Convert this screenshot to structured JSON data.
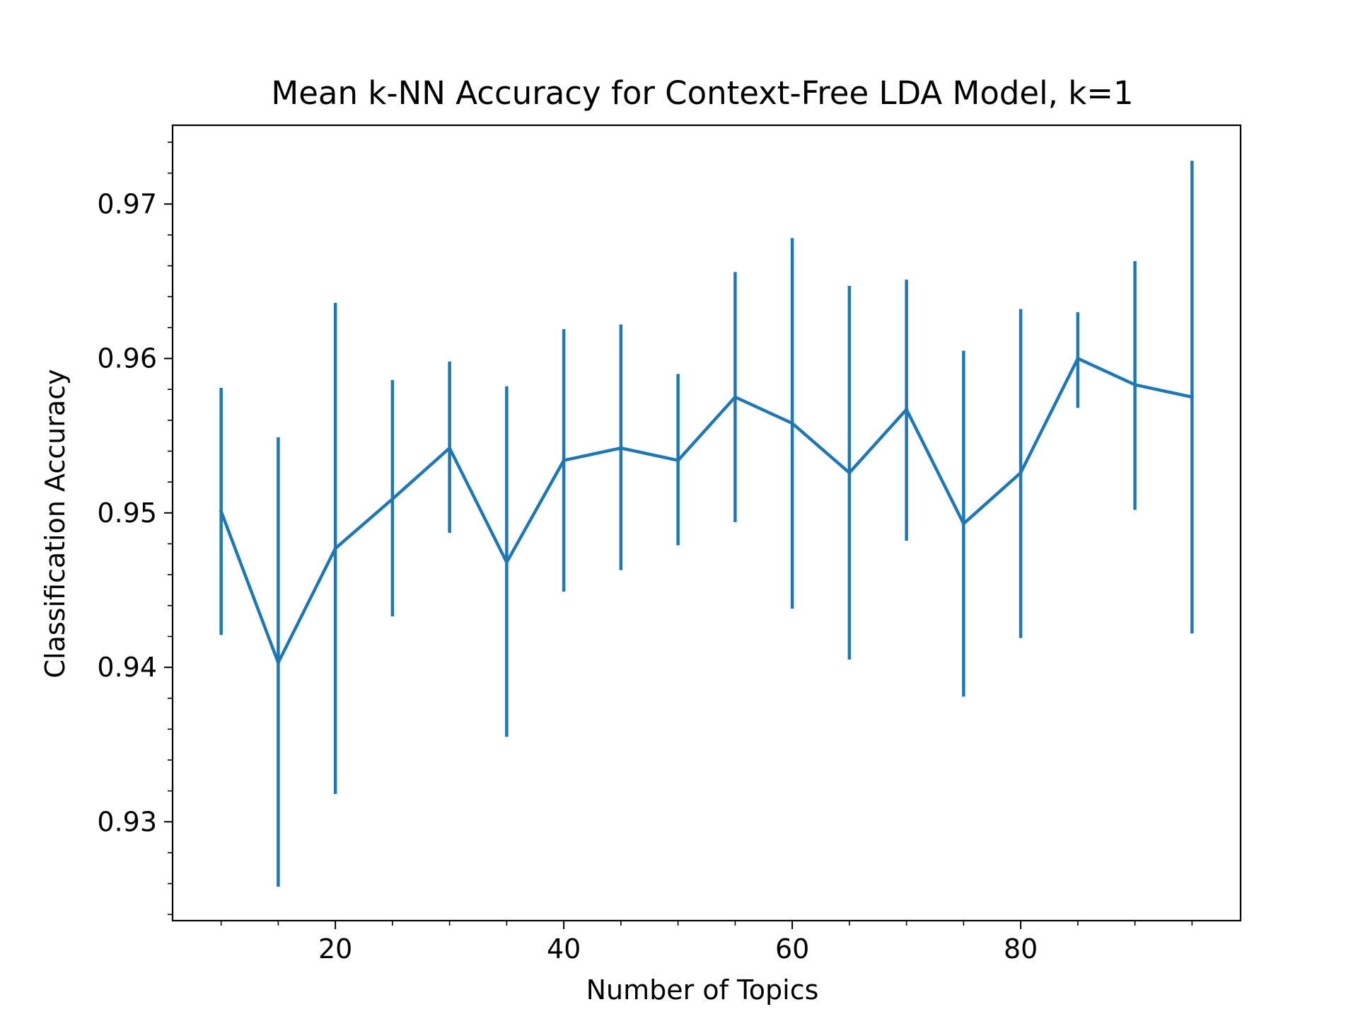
{
  "chart_data": {
    "type": "line",
    "title": "Mean k-NN Accuracy for Context-Free LDA Model, k=1",
    "xlabel": "Number of Topics",
    "ylabel": "Classification Accuracy",
    "xlim": [
      5.75,
      99.25
    ],
    "ylim": [
      0.9236,
      0.9751
    ],
    "x_ticks": [
      20,
      40,
      60,
      80
    ],
    "x_tick_labels": [
      "20",
      "40",
      "60",
      "80"
    ],
    "x_minor_ticks": [
      10,
      15,
      25,
      30,
      35,
      45,
      50,
      55,
      65,
      70,
      75,
      85,
      90,
      95
    ],
    "y_ticks": [
      0.93,
      0.94,
      0.95,
      0.96,
      0.97
    ],
    "y_tick_labels": [
      "0.93",
      "0.94",
      "0.95",
      "0.96",
      "0.97"
    ],
    "y_minor_step": 0.002,
    "grid": false,
    "legend": null,
    "color": "#1f77b4",
    "series": [
      {
        "x": [
          10,
          15,
          20,
          25,
          30,
          35,
          40,
          45,
          50,
          55,
          60,
          65,
          70,
          75,
          80,
          85,
          90,
          95
        ],
        "values": [
          0.9501,
          0.9403,
          0.9477,
          0.9509,
          0.9542,
          0.9468,
          0.9534,
          0.9542,
          0.9534,
          0.9575,
          0.9558,
          0.9526,
          0.9567,
          0.9493,
          0.9526,
          0.96,
          0.9583,
          0.9575
        ],
        "error_low": [
          0.9421,
          0.9258,
          0.9318,
          0.9433,
          0.9487,
          0.9355,
          0.9449,
          0.9463,
          0.9479,
          0.9494,
          0.9438,
          0.9405,
          0.9482,
          0.9381,
          0.9419,
          0.9568,
          0.9502,
          0.9422
        ],
        "error_high": [
          0.9581,
          0.9549,
          0.9636,
          0.9586,
          0.9598,
          0.9582,
          0.9619,
          0.9622,
          0.959,
          0.9656,
          0.9678,
          0.9647,
          0.9651,
          0.9605,
          0.9632,
          0.963,
          0.9663,
          0.9728
        ]
      }
    ]
  }
}
